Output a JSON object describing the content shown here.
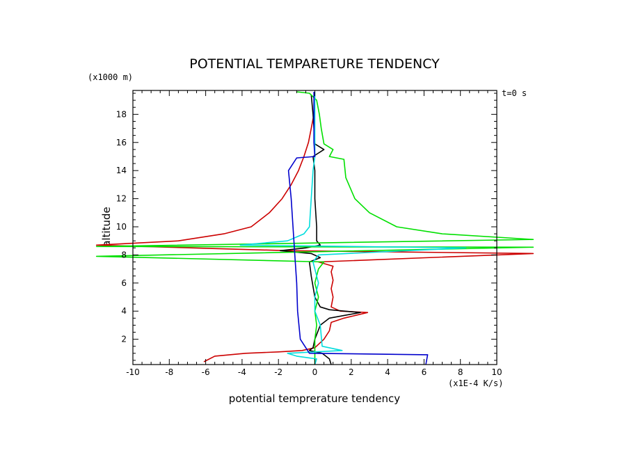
{
  "chart_data": {
    "type": "line",
    "title": "POTENTIAL TEMPARETURE TENDENCY",
    "xlabel": "potential temprerature tendency",
    "ylabel": "altitude",
    "x_unit": "(x1E-4 K/s)",
    "y_unit": "(x1000 m)",
    "annotation": "t=0 s",
    "xlim": [
      -10,
      10
    ],
    "ylim": [
      0.2,
      19.7
    ],
    "x_ticks": [
      -10,
      -8,
      -6,
      -4,
      -2,
      0,
      2,
      4,
      6,
      8,
      10
    ],
    "x_tick_labels": [
      "-10",
      "-8",
      "-6",
      "-4",
      "-2",
      "0",
      "2",
      "4",
      "6",
      "8",
      "10"
    ],
    "y_ticks": [
      2,
      4,
      6,
      8,
      10,
      12,
      14,
      16,
      18
    ],
    "y_tick_labels": [
      "2",
      "4",
      "6",
      "8",
      "10",
      "12",
      "14",
      "16",
      "18"
    ],
    "grid": false,
    "legend": "none",
    "series": [
      {
        "color": "#cc0000",
        "points": [
          [
            -6.1,
            0.4
          ],
          [
            -5.5,
            0.8
          ],
          [
            -3.8,
            1.0
          ],
          [
            -2.0,
            1.1
          ],
          [
            -0.7,
            1.2
          ],
          [
            0,
            1.4
          ],
          [
            0.5,
            2.0
          ],
          [
            0.8,
            2.6
          ],
          [
            0.9,
            3.2
          ],
          [
            1.6,
            3.5
          ],
          [
            2.9,
            3.9
          ],
          [
            1.4,
            4.0
          ],
          [
            0.9,
            4.3
          ],
          [
            1.0,
            5.0
          ],
          [
            0.9,
            5.6
          ],
          [
            1.0,
            6.2
          ],
          [
            0.9,
            6.8
          ],
          [
            1.0,
            7.2
          ],
          [
            0.2,
            7.5
          ],
          [
            12.0,
            8.1
          ],
          [
            -1.5,
            8.3
          ],
          [
            -12.0,
            8.7
          ],
          [
            -7.5,
            9.0
          ],
          [
            -5.0,
            9.5
          ],
          [
            -3.5,
            10.0
          ],
          [
            -2.5,
            11.0
          ],
          [
            -1.8,
            12.0
          ],
          [
            -1.3,
            13.0
          ],
          [
            -0.9,
            14.0
          ],
          [
            -0.6,
            15.0
          ],
          [
            -0.35,
            16.0
          ],
          [
            -0.2,
            17.0
          ],
          [
            -0.05,
            18.0
          ],
          [
            0,
            19.3
          ]
        ]
      },
      {
        "color": "#000000",
        "points": [
          [
            0.9,
            0.2
          ],
          [
            0.8,
            0.6
          ],
          [
            0.4,
            1.0
          ],
          [
            -0.3,
            1.2
          ],
          [
            -0.1,
            1.4
          ],
          [
            0,
            2.0
          ],
          [
            0.3,
            3.0
          ],
          [
            0.8,
            3.5
          ],
          [
            2.5,
            3.9
          ],
          [
            0.8,
            4.1
          ],
          [
            0.3,
            4.3
          ],
          [
            0,
            5.0
          ],
          [
            -0.2,
            6.5
          ],
          [
            -0.3,
            7.5
          ],
          [
            0.3,
            7.8
          ],
          [
            -0.2,
            8.1
          ],
          [
            -1.9,
            8.3
          ],
          [
            -0.5,
            8.5
          ],
          [
            0.3,
            8.7
          ],
          [
            0.1,
            9.0
          ],
          [
            0.1,
            10.0
          ],
          [
            0,
            12.0
          ],
          [
            0,
            14.0
          ],
          [
            -0.1,
            15.0
          ],
          [
            0.5,
            15.5
          ],
          [
            0,
            15.9
          ],
          [
            -0.05,
            17.0
          ],
          [
            -0.1,
            18.0
          ],
          [
            -0.2,
            19.4
          ]
        ]
      },
      {
        "color": "#00e000",
        "points": [
          [
            0,
            0.2
          ],
          [
            0,
            1.0
          ],
          [
            0,
            2.0
          ],
          [
            0.1,
            3.0
          ],
          [
            0,
            4.0
          ],
          [
            0.2,
            5.0
          ],
          [
            0,
            6.0
          ],
          [
            0.2,
            7.0
          ],
          [
            0.5,
            7.5
          ],
          [
            -12.0,
            7.9
          ],
          [
            12.0,
            8.55
          ],
          [
            -12.0,
            8.6
          ],
          [
            12.0,
            9.1
          ],
          [
            7.0,
            9.5
          ],
          [
            4.5,
            10.0
          ],
          [
            3.0,
            11.0
          ],
          [
            2.2,
            12.0
          ],
          [
            1.7,
            13.5
          ],
          [
            1.6,
            14.8
          ],
          [
            0.8,
            15.0
          ],
          [
            1.0,
            15.5
          ],
          [
            0.5,
            15.9
          ],
          [
            0.35,
            17.0
          ],
          [
            0.25,
            18.0
          ],
          [
            0.1,
            19.0
          ],
          [
            -0.3,
            19.5
          ],
          [
            -1.0,
            19.6
          ]
        ]
      },
      {
        "color": "#00dddd",
        "points": [
          [
            0,
            0.2
          ],
          [
            0.1,
            0.6
          ],
          [
            -1.0,
            0.8
          ],
          [
            -1.5,
            1.0
          ],
          [
            1.5,
            1.2
          ],
          [
            0.4,
            1.5
          ],
          [
            0.3,
            3.0
          ],
          [
            0,
            4.0
          ],
          [
            0,
            5.0
          ],
          [
            0.2,
            6.0
          ],
          [
            0,
            7.0
          ],
          [
            -0.1,
            7.5
          ],
          [
            0.2,
            8.0
          ],
          [
            8.3,
            8.5
          ],
          [
            -4.1,
            8.7
          ],
          [
            -1.5,
            9.0
          ],
          [
            -0.6,
            9.5
          ],
          [
            -0.3,
            10.0
          ],
          [
            -0.2,
            12.0
          ],
          [
            -0.1,
            14.0
          ],
          [
            0,
            15.0
          ],
          [
            0,
            19.6
          ]
        ]
      },
      {
        "color": "#0000cc",
        "points": [
          [
            6.1,
            0.2
          ],
          [
            6.2,
            0.9
          ],
          [
            -0.3,
            1.0
          ],
          [
            -0.8,
            2.0
          ],
          [
            -0.95,
            4.0
          ],
          [
            -1.0,
            6.0
          ],
          [
            -1.1,
            8.0
          ],
          [
            -1.2,
            10.0
          ],
          [
            -1.3,
            12.0
          ],
          [
            -1.45,
            14.0
          ],
          [
            -1.0,
            14.9
          ],
          [
            0.0,
            15.0
          ],
          [
            -0.05,
            16.0
          ],
          [
            -0.05,
            18.0
          ],
          [
            -0.05,
            19.6
          ]
        ]
      }
    ]
  }
}
